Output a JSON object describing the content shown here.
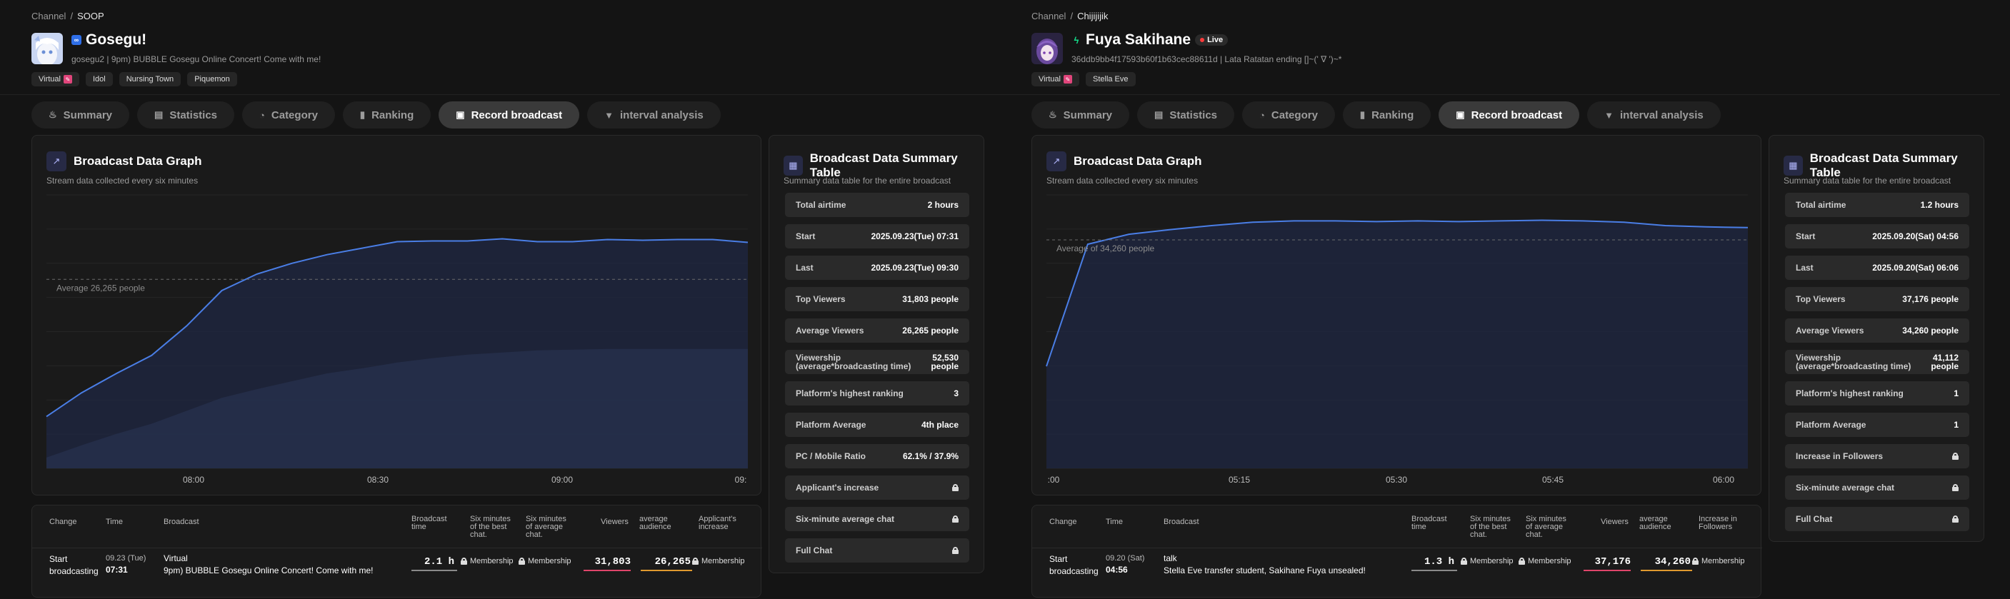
{
  "panels": [
    {
      "breadcrumb": {
        "root": "Channel",
        "separator": "/",
        "current": "SOOP"
      },
      "platform_icon": "soop-icon",
      "channel_name": "Gosegu!",
      "live": false,
      "live_label": "",
      "subtitle": "gosegu2 | 9pm) BUBBLE Gosegu Online Concert! Come with me!",
      "tags": [
        "Virtual",
        "Idol",
        "Nursing Town",
        "Piquemon"
      ],
      "tabs": [
        {
          "label": "Summary",
          "icon": "flame-icon"
        },
        {
          "label": "Statistics",
          "icon": "stats-icon"
        },
        {
          "label": "Category",
          "icon": "category-icon"
        },
        {
          "label": "Ranking",
          "icon": "ranking-icon"
        },
        {
          "label": "Record broadcast",
          "icon": "record-icon"
        },
        {
          "label": "interval analysis",
          "icon": "bookmark-icon"
        }
      ],
      "active_tab": 4,
      "graph": {
        "title": "Broadcast Data Graph",
        "description": "Stream data collected every six minutes",
        "average_label": "Average 26,265 people"
      },
      "chart_data": {
        "type": "area",
        "x_tick_labels": [
          "08:00",
          "08:30",
          "09:00",
          "09:"
        ],
        "series": [
          {
            "values": [
              7200,
              10500,
              13200,
              15700,
              19800,
              24700,
              27000,
              28500,
              29700,
              30600,
              31500,
              31600,
              31600,
              31900,
              31500,
              31500,
              31800,
              31700,
              31800,
              31800,
              31400
            ]
          },
          {
            "values": [
              1500,
              3200,
              4800,
              6200,
              8000,
              9800,
              11000,
              12100,
              13200,
              13900,
              14700,
              15300,
              15800,
              16100,
              16400,
              16500,
              16600,
              16600,
              16600,
              16600,
              16600
            ]
          }
        ],
        "average": 26265,
        "ylim": [
          0,
          38000
        ],
        "grid": true,
        "colors": {
          "line": "#4a7ee6",
          "fill": "#1f2743"
        }
      },
      "summary": {
        "title": "Broadcast Data Summary Table",
        "description": "Summary data table for the entire broadcast",
        "rows": [
          {
            "key": "Total airtime",
            "value": "2 hours"
          },
          {
            "key": "Start",
            "value": "2025.09.23(Tue) 07:31"
          },
          {
            "key": "Last",
            "value": "2025.09.23(Tue) 09:30"
          },
          {
            "key": "Top Viewers",
            "value": "31,803 people"
          },
          {
            "key": "Average Viewers",
            "value": "26,265 people"
          },
          {
            "key": "Viewership",
            "key2": "(average*broadcasting time)",
            "value": "52,530",
            "value2": "people"
          },
          {
            "key": "Platform's highest ranking",
            "value": "3"
          },
          {
            "key": "Platform Average",
            "value": "4th place"
          },
          {
            "key": "PC / Mobile Ratio",
            "value": "62.1% / 37.9%"
          },
          {
            "key": "Applicant's increase",
            "value": "",
            "locked": true
          },
          {
            "key": "Six-minute average chat",
            "value": "",
            "locked": true
          },
          {
            "key": "Full Chat",
            "value": "",
            "locked": true
          }
        ]
      },
      "table": {
        "headers": [
          "Change",
          "Time",
          "Broadcast",
          "Broadcast time",
          "Six minutes of the best chat.",
          "Six minutes of average chat.",
          "Viewers",
          "average audience",
          "Applicant's increase"
        ],
        "row": {
          "change": "Start broadcasting",
          "date": "09.23 (Tue)",
          "time": "07:31",
          "category": "Virtual",
          "title": "9pm) BUBBLE Gosegu Online Concert! Come with me!",
          "duration": "2.1 h",
          "best_chat": "Membership",
          "avg_chat": "Membership",
          "viewers": "31,803",
          "average": "26,265",
          "increase": "Membership"
        }
      }
    },
    {
      "breadcrumb": {
        "root": "Channel",
        "separator": "/",
        "current": "Chijijijik"
      },
      "platform_icon": "chzzk-icon",
      "channel_name": "Fuya Sakihane",
      "live": true,
      "live_label": "Live",
      "subtitle": "36ddb9bb4f17593b60f1b63cec88611d | Lata Ratatan ending []~(' ∇ ')~*",
      "tags": [
        "Virtual",
        "Stella Eve"
      ],
      "tabs": [
        {
          "label": "Summary",
          "icon": "flame-icon"
        },
        {
          "label": "Statistics",
          "icon": "stats-icon"
        },
        {
          "label": "Category",
          "icon": "category-icon"
        },
        {
          "label": "Ranking",
          "icon": "ranking-icon"
        },
        {
          "label": "Record broadcast",
          "icon": "record-icon"
        },
        {
          "label": "interval analysis",
          "icon": "bookmark-icon"
        }
      ],
      "active_tab": 4,
      "graph": {
        "title": "Broadcast Data Graph",
        "description": "Stream data collected every six minutes",
        "average_label": "Average of 34,260 people"
      },
      "chart_data": {
        "type": "area",
        "x_tick_labels": [
          ":00",
          "05:15",
          "05:30",
          "05:45",
          "06:00"
        ],
        "series": [
          {
            "values": [
              15300,
              33600,
              35100,
              35800,
              36400,
              36900,
              37100,
              37100,
              37000,
              37100,
              37000,
              37100,
              37200,
              37100,
              36900,
              36400,
              36200,
              36100
            ]
          }
        ],
        "average": 34260,
        "ylim": [
          0,
          41000
        ],
        "grid": true,
        "colors": {
          "line": "#4a7ee6",
          "fill": "#1f2743"
        }
      },
      "summary": {
        "title": "Broadcast Data Summary Table",
        "description": "Summary data table for the entire broadcast",
        "rows": [
          {
            "key": "Total airtime",
            "value": "1.2 hours"
          },
          {
            "key": "Start",
            "value": "2025.09.20(Sat) 04:56"
          },
          {
            "key": "Last",
            "value": "2025.09.20(Sat) 06:06"
          },
          {
            "key": "Top Viewers",
            "value": "37,176 people"
          },
          {
            "key": "Average Viewers",
            "value": "34,260 people"
          },
          {
            "key": "Viewership",
            "key2": "(average*broadcasting time)",
            "value": "41,112",
            "value2": "people"
          },
          {
            "key": "Platform's highest ranking",
            "value": "1"
          },
          {
            "key": "Platform Average",
            "value": "1"
          },
          {
            "key": "Increase in Followers",
            "value": "",
            "locked": true
          },
          {
            "key": "Six-minute average chat",
            "value": "",
            "locked": true
          },
          {
            "key": "Full Chat",
            "value": "",
            "locked": true
          }
        ]
      },
      "table": {
        "headers": [
          "Change",
          "Time",
          "Broadcast",
          "Broadcast time",
          "Six minutes of the best chat.",
          "Six minutes of average chat.",
          "Viewers",
          "average audience",
          "Increase in Followers"
        ],
        "row": {
          "change": "Start broadcasting",
          "date": "09.20 (Sat)",
          "time": "04:56",
          "category": "talk",
          "title": "Stella Eve transfer student, Sakihane Fuya unsealed!",
          "duration": "1.3 h",
          "best_chat": "Membership",
          "avg_chat": "Membership",
          "viewers": "37,176",
          "average": "34,260",
          "increase": "Membership"
        }
      }
    }
  ]
}
